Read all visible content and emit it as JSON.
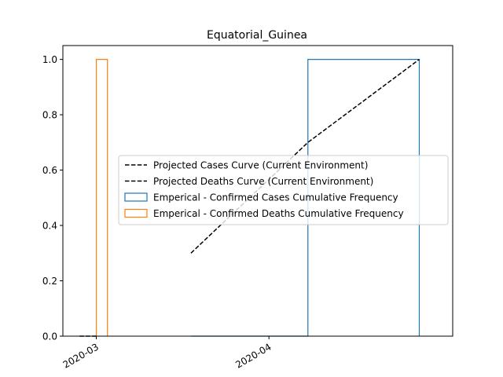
{
  "chart_data": {
    "type": "line",
    "title": "Equatorial_Guinea",
    "xlabel": "",
    "ylabel": "",
    "x_is_date": true,
    "xlim": [
      "2020-02-24",
      "2020-05-04"
    ],
    "ylim": [
      0,
      1.05
    ],
    "x_ticks": [
      {
        "value": "2020-03-01",
        "label": "2020-03"
      },
      {
        "value": "2020-04-01",
        "label": "2020-04"
      }
    ],
    "y_ticks": [
      {
        "value": 0.0,
        "label": "0.0"
      },
      {
        "value": 0.2,
        "label": "0.2"
      },
      {
        "value": 0.4,
        "label": "0.4"
      },
      {
        "value": 0.6,
        "label": "0.6"
      },
      {
        "value": 0.8,
        "label": "0.8"
      },
      {
        "value": 1.0,
        "label": "1.0"
      }
    ],
    "series": [
      {
        "name": "Projected Cases Curve (Current Environment)",
        "kind": "line",
        "style": "dashed",
        "color": "#000000",
        "points": [
          {
            "x": "2020-03-18",
            "y": 0.3
          },
          {
            "x": "2020-04-08",
            "y": 0.7
          },
          {
            "x": "2020-04-28",
            "y": 1.0
          }
        ]
      },
      {
        "name": "Projected Deaths Curve (Current Environment)",
        "kind": "line",
        "style": "dashed",
        "color": "#000000",
        "points": [
          {
            "x": "2020-02-27",
            "y": 0.0
          },
          {
            "x": "2020-03-01",
            "y": 0.0
          }
        ]
      },
      {
        "name": "Emperical - Confirmed Cases Cumulative Frequency",
        "kind": "step",
        "color": "#1f77b4",
        "bins": [
          {
            "start": "2020-03-18",
            "end": "2020-04-08",
            "value": 0.0
          },
          {
            "start": "2020-04-08",
            "end": "2020-04-28",
            "value": 1.0
          }
        ]
      },
      {
        "name": "Emperical - Confirmed Deaths Cumulative Frequency",
        "kind": "step",
        "color": "#ff7f0e",
        "bins": [
          {
            "start": "2020-03-01",
            "end": "2020-03-03",
            "value": 1.0
          }
        ]
      }
    ],
    "legend": {
      "placement": "center-right"
    }
  }
}
